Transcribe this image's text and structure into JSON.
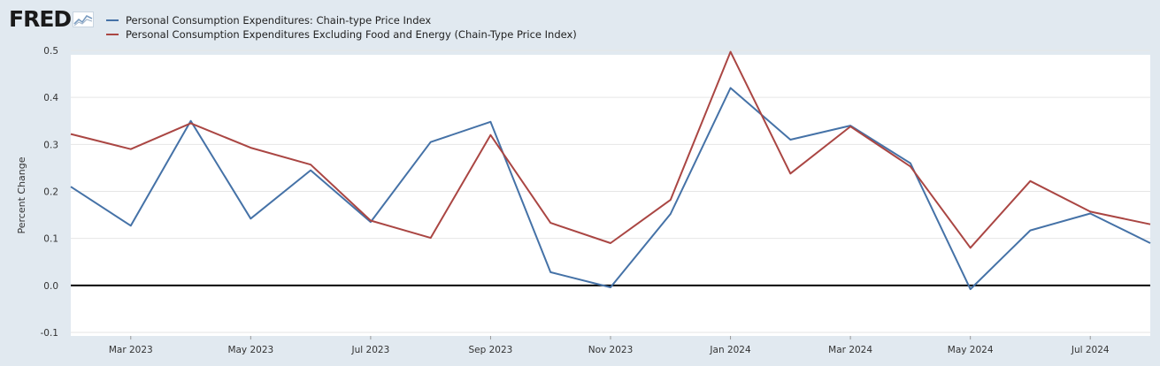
{
  "brand": {
    "logo_text": "FRED"
  },
  "chart_data": {
    "type": "line",
    "ylabel": "Percent Change",
    "ylim": [
      -0.1,
      0.5
    ],
    "yticks": [
      -0.1,
      0.0,
      0.1,
      0.2,
      0.3,
      0.4,
      0.5
    ],
    "ytick_labels": [
      "-0.1",
      "0.0",
      "0.1",
      "0.2",
      "0.3",
      "0.4",
      "0.5"
    ],
    "x": [
      "2023-02",
      "2023-03",
      "2023-04",
      "2023-05",
      "2023-06",
      "2023-07",
      "2023-08",
      "2023-09",
      "2023-10",
      "2023-11",
      "2023-12",
      "2024-01",
      "2024-02",
      "2024-03",
      "2024-04",
      "2024-05",
      "2024-06",
      "2024-07",
      "2024-08"
    ],
    "xticks": [
      "Mar 2023",
      "May 2023",
      "Jul 2023",
      "Sep 2023",
      "Nov 2023",
      "Jan 2024",
      "Mar 2024",
      "May 2024",
      "Jul 2024"
    ],
    "grid": true,
    "legend_position": "top-left",
    "series": [
      {
        "name": "Personal Consumption Expenditures: Chain-type Price Index",
        "color": "#4572a7",
        "values": [
          0.21,
          0.127,
          0.35,
          0.142,
          0.245,
          0.135,
          0.305,
          0.348,
          0.028,
          -0.004,
          0.152,
          0.42,
          0.31,
          0.34,
          0.26,
          -0.008,
          0.117,
          0.153,
          0.09
        ]
      },
      {
        "name": "Personal Consumption Expenditures Excluding Food and Energy (Chain-Type Price Index)",
        "color": "#aa4643",
        "values": [
          0.322,
          0.29,
          0.345,
          0.293,
          0.257,
          0.138,
          0.101,
          0.32,
          0.133,
          0.09,
          0.182,
          0.497,
          0.238,
          0.338,
          0.253,
          0.08,
          0.222,
          0.157,
          0.13
        ]
      }
    ],
    "zero_line": true
  }
}
